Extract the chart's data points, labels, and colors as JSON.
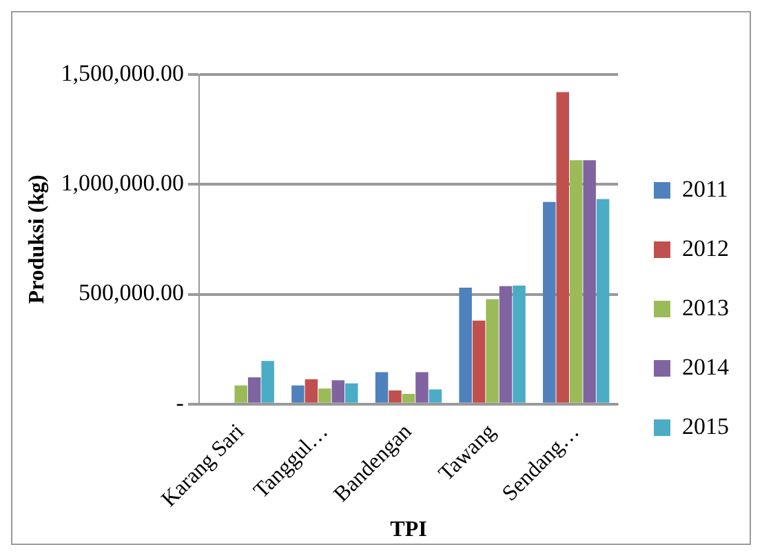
{
  "chart_data": {
    "type": "bar",
    "xlabel": "TPI",
    "ylabel": "Produksi (kg)",
    "categories": [
      "Karang Sari",
      "Tanggul…",
      "Bandengan",
      "Tawang",
      "Sendang…"
    ],
    "series": [
      {
        "name": "2011",
        "color": "#4f81bd",
        "values": [
          null,
          85000,
          145000,
          530000,
          920000
        ]
      },
      {
        "name": "2012",
        "color": "#c0504d",
        "values": [
          null,
          113000,
          62000,
          380000,
          1420000
        ]
      },
      {
        "name": "2013",
        "color": "#9bbb59",
        "values": [
          85000,
          71000,
          46000,
          477000,
          1110000
        ]
      },
      {
        "name": "2014",
        "color": "#8064a2",
        "values": [
          122000,
          108000,
          145000,
          537000,
          1110000
        ]
      },
      {
        "name": "2015",
        "color": "#4bacc6",
        "values": [
          196000,
          94000,
          67000,
          539000,
          933000
        ]
      }
    ],
    "ylim": [
      0,
      1500000
    ],
    "yticks": [
      {
        "value": 0,
        "label": "-"
      },
      {
        "value": 500000,
        "label": "500,000.00"
      },
      {
        "value": 1000000,
        "label": "1,000,000.00"
      },
      {
        "value": 1500000,
        "label": "1,500,000.00"
      }
    ],
    "grid": "y",
    "legend": "right"
  }
}
